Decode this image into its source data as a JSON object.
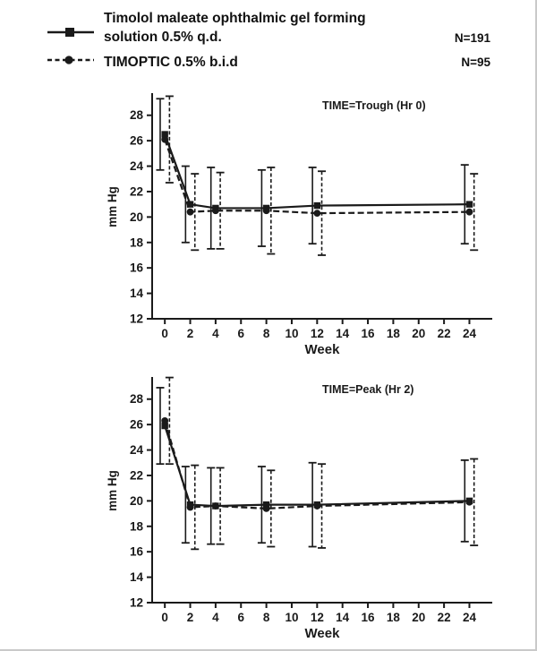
{
  "header": {
    "legend": [
      {
        "label_line1": "Timolol maleate ophthalmic gel forming",
        "label_line2": "solution 0.5% q.d.",
        "n": "N=191"
      },
      {
        "label": "TIMOPTIC 0.5% b.i.d",
        "n": "N=95"
      }
    ]
  },
  "chart_data": [
    {
      "type": "line",
      "title": "TIME=Trough (Hr 0)",
      "xlabel": "Week",
      "ylabel": "mm Hg",
      "xlim": [
        -1,
        25.8
      ],
      "ylim": [
        12,
        29.6
      ],
      "xticks": [
        0,
        2,
        4,
        6,
        8,
        10,
        12,
        14,
        16,
        18,
        20,
        22,
        24
      ],
      "yticks": [
        12,
        14,
        16,
        18,
        20,
        22,
        24,
        26,
        28
      ],
      "x": [
        0,
        2,
        4,
        8,
        12,
        24
      ],
      "series": [
        {
          "name": "Timolol maleate ophthalmic gel forming solution 0.5% q.d.",
          "marker": "square",
          "dash": false,
          "values": [
            26.5,
            21.0,
            20.7,
            20.7,
            20.9,
            21.0
          ],
          "err": [
            2.8,
            3.0,
            3.2,
            3.0,
            3.0,
            3.1
          ]
        },
        {
          "name": "TIMOPTIC 0.5% b.i.d",
          "marker": "circle",
          "dash": true,
          "values": [
            26.1,
            20.4,
            20.5,
            20.5,
            20.3,
            20.4
          ],
          "err": [
            3.4,
            3.0,
            3.0,
            3.4,
            3.3,
            3.0
          ]
        }
      ]
    },
    {
      "type": "line",
      "title": "TIME=Peak (Hr 2)",
      "xlabel": "Week",
      "ylabel": "mm Hg",
      "xlim": [
        -1,
        25.8
      ],
      "ylim": [
        12,
        29.6
      ],
      "xticks": [
        0,
        2,
        4,
        6,
        8,
        10,
        12,
        14,
        16,
        18,
        20,
        22,
        24
      ],
      "yticks": [
        12,
        14,
        16,
        18,
        20,
        22,
        24,
        26,
        28
      ],
      "x": [
        0,
        2,
        4,
        8,
        12,
        24
      ],
      "series": [
        {
          "name": "Timolol maleate ophthalmic gel forming solution 0.5% q.d.",
          "marker": "square",
          "dash": false,
          "values": [
            25.9,
            19.7,
            19.6,
            19.7,
            19.7,
            20.0
          ],
          "err": [
            3.0,
            3.0,
            3.0,
            3.0,
            3.3,
            3.2
          ]
        },
        {
          "name": "TIMOPTIC 0.5% b.i.d",
          "marker": "circle",
          "dash": true,
          "values": [
            26.3,
            19.5,
            19.6,
            19.4,
            19.6,
            19.9
          ],
          "err": [
            3.4,
            3.3,
            3.0,
            3.0,
            3.3,
            3.4
          ]
        }
      ]
    }
  ]
}
